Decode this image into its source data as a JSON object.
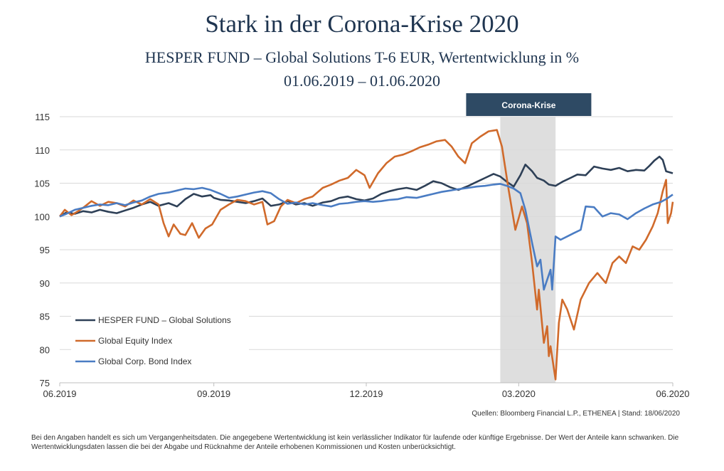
{
  "title": "Stark in der Corona-Krise 2020",
  "subtitle": "HESPER FUND – Global Solutions T-6 EUR, Wertentwicklung in %",
  "period": "01.06.2019 – 01.06.2020",
  "source": "Quellen: Bloomberg Financial L.P., ETHENEA  | Stand: 18/06/2020",
  "disclaimer": "Bei den Angaben handelt es sich um Vergangenheitsdaten. Die angegebene Wertentwicklung ist kein verlässlicher Indikator für laufende oder künftige Ergebnisse. Der Wert der Anteile kann schwanken. Die Wertentwicklungsdaten lassen die bei der Abgabe und Rücknahme der Anteile erhobenen Kommissionen und Kosten unberücksichtigt.",
  "chart_data": {
    "type": "line",
    "title": "Stark in der Corona-Krise 2020",
    "xlabel": "",
    "ylabel": "",
    "xlim": [
      "2019-06-01",
      "2020-06-01"
    ],
    "ylim": [
      75,
      115
    ],
    "yticks": [
      75,
      80,
      85,
      90,
      95,
      100,
      105,
      110,
      115
    ],
    "xticks": [
      {
        "date": "2019-06-01",
        "label": "06.2019"
      },
      {
        "date": "2019-09-01",
        "label": "09.2019"
      },
      {
        "date": "2019-12-01",
        "label": "12.2019"
      },
      {
        "date": "2020-03-01",
        "label": "03.2020"
      },
      {
        "date": "2020-06-01",
        "label": "06.2020"
      }
    ],
    "grid": "horizontal",
    "legend_position": "bottom-left",
    "annotation": {
      "label": "Corona-Krise",
      "start": "2020-02-19",
      "end": "2020-03-23",
      "band_color": "#dedede",
      "label_bg": "#2e4a64"
    },
    "series": [
      {
        "name": "HESPER FUND – Global Solutions",
        "color": "#2e4057",
        "points": [
          [
            "2019-06-01",
            100.0
          ],
          [
            "2019-06-05",
            100.6
          ],
          [
            "2019-06-10",
            100.4
          ],
          [
            "2019-06-15",
            100.8
          ],
          [
            "2019-06-20",
            100.6
          ],
          [
            "2019-06-25",
            101.0
          ],
          [
            "2019-06-30",
            100.7
          ],
          [
            "2019-07-05",
            100.5
          ],
          [
            "2019-07-10",
            100.9
          ],
          [
            "2019-07-15",
            101.3
          ],
          [
            "2019-07-20",
            101.8
          ],
          [
            "2019-07-25",
            102.2
          ],
          [
            "2019-07-30",
            101.6
          ],
          [
            "2019-08-05",
            102.0
          ],
          [
            "2019-08-10",
            101.5
          ],
          [
            "2019-08-15",
            102.6
          ],
          [
            "2019-08-20",
            103.4
          ],
          [
            "2019-08-25",
            103.0
          ],
          [
            "2019-08-30",
            103.2
          ],
          [
            "2019-09-01",
            102.8
          ],
          [
            "2019-09-05",
            102.5
          ],
          [
            "2019-09-10",
            102.4
          ],
          [
            "2019-09-15",
            102.2
          ],
          [
            "2019-09-20",
            102.0
          ],
          [
            "2019-09-25",
            102.3
          ],
          [
            "2019-09-30",
            102.7
          ],
          [
            "2019-10-05",
            101.6
          ],
          [
            "2019-10-10",
            101.8
          ],
          [
            "2019-10-15",
            102.3
          ],
          [
            "2019-10-20",
            101.8
          ],
          [
            "2019-10-25",
            102.0
          ],
          [
            "2019-10-30",
            101.6
          ],
          [
            "2019-11-05",
            102.1
          ],
          [
            "2019-11-10",
            102.3
          ],
          [
            "2019-11-15",
            102.8
          ],
          [
            "2019-11-20",
            103.0
          ],
          [
            "2019-11-25",
            102.6
          ],
          [
            "2019-11-30",
            102.4
          ],
          [
            "2019-12-05",
            102.7
          ],
          [
            "2019-12-10",
            103.4
          ],
          [
            "2019-12-15",
            103.8
          ],
          [
            "2019-12-20",
            104.1
          ],
          [
            "2019-12-25",
            104.3
          ],
          [
            "2019-12-31",
            104.0
          ],
          [
            "2020-01-05",
            104.6
          ],
          [
            "2020-01-10",
            105.3
          ],
          [
            "2020-01-15",
            105.0
          ],
          [
            "2020-01-20",
            104.4
          ],
          [
            "2020-01-25",
            104.0
          ],
          [
            "2020-01-31",
            104.6
          ],
          [
            "2020-02-05",
            105.2
          ],
          [
            "2020-02-10",
            105.8
          ],
          [
            "2020-02-15",
            106.4
          ],
          [
            "2020-02-19",
            106.0
          ],
          [
            "2020-02-23",
            105.2
          ],
          [
            "2020-02-27",
            104.5
          ],
          [
            "2020-03-02",
            106.2
          ],
          [
            "2020-03-05",
            107.8
          ],
          [
            "2020-03-09",
            106.8
          ],
          [
            "2020-03-12",
            105.8
          ],
          [
            "2020-03-16",
            105.4
          ],
          [
            "2020-03-19",
            104.8
          ],
          [
            "2020-03-23",
            104.6
          ],
          [
            "2020-03-27",
            105.2
          ],
          [
            "2020-04-01",
            105.8
          ],
          [
            "2020-04-05",
            106.3
          ],
          [
            "2020-04-10",
            106.2
          ],
          [
            "2020-04-15",
            107.5
          ],
          [
            "2020-04-20",
            107.2
          ],
          [
            "2020-04-25",
            107.0
          ],
          [
            "2020-04-30",
            107.3
          ],
          [
            "2020-05-05",
            106.8
          ],
          [
            "2020-05-10",
            107.0
          ],
          [
            "2020-05-15",
            106.9
          ],
          [
            "2020-05-18",
            107.6
          ],
          [
            "2020-05-21",
            108.4
          ],
          [
            "2020-05-24",
            109.0
          ],
          [
            "2020-05-26",
            108.5
          ],
          [
            "2020-05-28",
            106.8
          ],
          [
            "2020-06-01",
            106.5
          ]
        ]
      },
      {
        "name": "Global Equity Index",
        "color": "#d06a2b",
        "points": [
          [
            "2019-06-01",
            100.0
          ],
          [
            "2019-06-04",
            101.0
          ],
          [
            "2019-06-08",
            100.2
          ],
          [
            "2019-06-12",
            100.8
          ],
          [
            "2019-06-16",
            101.5
          ],
          [
            "2019-06-20",
            102.3
          ],
          [
            "2019-06-25",
            101.6
          ],
          [
            "2019-06-30",
            102.2
          ],
          [
            "2019-07-05",
            102.0
          ],
          [
            "2019-07-10",
            101.5
          ],
          [
            "2019-07-15",
            102.4
          ],
          [
            "2019-07-20",
            101.8
          ],
          [
            "2019-07-25",
            102.6
          ],
          [
            "2019-07-30",
            101.8
          ],
          [
            "2019-08-02",
            99.0
          ],
          [
            "2019-08-05",
            97.0
          ],
          [
            "2019-08-08",
            98.8
          ],
          [
            "2019-08-12",
            97.4
          ],
          [
            "2019-08-15",
            97.2
          ],
          [
            "2019-08-19",
            99.0
          ],
          [
            "2019-08-23",
            96.8
          ],
          [
            "2019-08-27",
            98.2
          ],
          [
            "2019-08-31",
            98.8
          ],
          [
            "2019-09-05",
            101.0
          ],
          [
            "2019-09-10",
            101.8
          ],
          [
            "2019-09-15",
            102.5
          ],
          [
            "2019-09-20",
            102.3
          ],
          [
            "2019-09-25",
            101.8
          ],
          [
            "2019-09-30",
            102.2
          ],
          [
            "2019-10-03",
            98.8
          ],
          [
            "2019-10-07",
            99.3
          ],
          [
            "2019-10-11",
            101.5
          ],
          [
            "2019-10-15",
            102.5
          ],
          [
            "2019-10-20",
            102.0
          ],
          [
            "2019-10-25",
            102.6
          ],
          [
            "2019-10-30",
            103.0
          ],
          [
            "2019-11-05",
            104.3
          ],
          [
            "2019-11-10",
            104.8
          ],
          [
            "2019-11-15",
            105.4
          ],
          [
            "2019-11-20",
            105.8
          ],
          [
            "2019-11-25",
            107.0
          ],
          [
            "2019-11-30",
            106.2
          ],
          [
            "2019-12-03",
            104.3
          ],
          [
            "2019-12-08",
            106.5
          ],
          [
            "2019-12-13",
            108.0
          ],
          [
            "2019-12-18",
            109.0
          ],
          [
            "2019-12-23",
            109.3
          ],
          [
            "2019-12-28",
            109.8
          ],
          [
            "2020-01-02",
            110.4
          ],
          [
            "2020-01-07",
            110.8
          ],
          [
            "2020-01-12",
            111.3
          ],
          [
            "2020-01-17",
            111.5
          ],
          [
            "2020-01-21",
            110.5
          ],
          [
            "2020-01-25",
            109.0
          ],
          [
            "2020-01-29",
            108.0
          ],
          [
            "2020-02-02",
            111.0
          ],
          [
            "2020-02-07",
            112.0
          ],
          [
            "2020-02-12",
            112.8
          ],
          [
            "2020-02-17",
            113.0
          ],
          [
            "2020-02-20",
            110.5
          ],
          [
            "2020-02-24",
            104.0
          ],
          [
            "2020-02-28",
            98.0
          ],
          [
            "2020-03-03",
            101.5
          ],
          [
            "2020-03-06",
            99.0
          ],
          [
            "2020-03-09",
            93.0
          ],
          [
            "2020-03-12",
            86.0
          ],
          [
            "2020-03-13",
            89.0
          ],
          [
            "2020-03-16",
            81.0
          ],
          [
            "2020-03-18",
            83.5
          ],
          [
            "2020-03-19",
            79.0
          ],
          [
            "2020-03-20",
            80.5
          ],
          [
            "2020-03-23",
            75.5
          ],
          [
            "2020-03-25",
            84.0
          ],
          [
            "2020-03-27",
            87.5
          ],
          [
            "2020-03-30",
            86.0
          ],
          [
            "2020-04-03",
            83.0
          ],
          [
            "2020-04-07",
            87.5
          ],
          [
            "2020-04-12",
            90.0
          ],
          [
            "2020-04-17",
            91.5
          ],
          [
            "2020-04-22",
            90.0
          ],
          [
            "2020-04-26",
            93.0
          ],
          [
            "2020-04-30",
            94.0
          ],
          [
            "2020-05-04",
            93.0
          ],
          [
            "2020-05-08",
            95.5
          ],
          [
            "2020-05-12",
            95.0
          ],
          [
            "2020-05-16",
            96.5
          ],
          [
            "2020-05-20",
            98.5
          ],
          [
            "2020-05-23",
            100.5
          ],
          [
            "2020-05-26",
            103.8
          ],
          [
            "2020-05-28",
            105.5
          ],
          [
            "2020-05-29",
            99.0
          ],
          [
            "2020-05-31",
            100.5
          ],
          [
            "2020-06-01",
            102.2
          ]
        ]
      },
      {
        "name": "Global Corp. Bond Index",
        "color": "#4a7cc3",
        "points": [
          [
            "2019-06-01",
            100.0
          ],
          [
            "2019-06-05",
            100.4
          ],
          [
            "2019-06-10",
            101.0
          ],
          [
            "2019-06-15",
            101.3
          ],
          [
            "2019-06-20",
            101.6
          ],
          [
            "2019-06-25",
            101.8
          ],
          [
            "2019-06-30",
            101.7
          ],
          [
            "2019-07-05",
            102.0
          ],
          [
            "2019-07-10",
            101.7
          ],
          [
            "2019-07-15",
            102.1
          ],
          [
            "2019-07-20",
            102.4
          ],
          [
            "2019-07-25",
            103.0
          ],
          [
            "2019-07-30",
            103.4
          ],
          [
            "2019-08-05",
            103.6
          ],
          [
            "2019-08-10",
            103.9
          ],
          [
            "2019-08-15",
            104.2
          ],
          [
            "2019-08-20",
            104.1
          ],
          [
            "2019-08-25",
            104.3
          ],
          [
            "2019-08-30",
            104.0
          ],
          [
            "2019-09-05",
            103.4
          ],
          [
            "2019-09-10",
            102.8
          ],
          [
            "2019-09-15",
            103.0
          ],
          [
            "2019-09-20",
            103.3
          ],
          [
            "2019-09-25",
            103.6
          ],
          [
            "2019-09-30",
            103.8
          ],
          [
            "2019-10-05",
            103.5
          ],
          [
            "2019-10-10",
            102.6
          ],
          [
            "2019-10-15",
            101.9
          ],
          [
            "2019-10-20",
            102.1
          ],
          [
            "2019-10-25",
            101.8
          ],
          [
            "2019-10-30",
            102.0
          ],
          [
            "2019-11-05",
            101.7
          ],
          [
            "2019-11-10",
            101.5
          ],
          [
            "2019-11-15",
            101.9
          ],
          [
            "2019-11-20",
            102.0
          ],
          [
            "2019-11-25",
            102.2
          ],
          [
            "2019-11-30",
            102.3
          ],
          [
            "2019-12-05",
            102.2
          ],
          [
            "2019-12-10",
            102.3
          ],
          [
            "2019-12-15",
            102.5
          ],
          [
            "2019-12-20",
            102.6
          ],
          [
            "2019-12-25",
            102.9
          ],
          [
            "2019-12-31",
            102.8
          ],
          [
            "2020-01-05",
            103.1
          ],
          [
            "2020-01-10",
            103.4
          ],
          [
            "2020-01-15",
            103.7
          ],
          [
            "2020-01-20",
            103.9
          ],
          [
            "2020-01-25",
            104.1
          ],
          [
            "2020-01-31",
            104.3
          ],
          [
            "2020-02-05",
            104.5
          ],
          [
            "2020-02-10",
            104.6
          ],
          [
            "2020-02-15",
            104.8
          ],
          [
            "2020-02-19",
            104.9
          ],
          [
            "2020-02-23",
            104.6
          ],
          [
            "2020-02-27",
            104.2
          ],
          [
            "2020-03-02",
            103.5
          ],
          [
            "2020-03-05",
            101.0
          ],
          [
            "2020-03-09",
            96.0
          ],
          [
            "2020-03-12",
            92.5
          ],
          [
            "2020-03-14",
            93.5
          ],
          [
            "2020-03-16",
            89.0
          ],
          [
            "2020-03-18",
            90.5
          ],
          [
            "2020-03-20",
            92.0
          ],
          [
            "2020-03-21",
            89.0
          ],
          [
            "2020-03-23",
            97.0
          ],
          [
            "2020-03-26",
            96.5
          ],
          [
            "2020-03-30",
            97.0
          ],
          [
            "2020-04-03",
            97.5
          ],
          [
            "2020-04-07",
            98.0
          ],
          [
            "2020-04-10",
            101.5
          ],
          [
            "2020-04-15",
            101.4
          ],
          [
            "2020-04-20",
            100.0
          ],
          [
            "2020-04-25",
            100.5
          ],
          [
            "2020-04-30",
            100.3
          ],
          [
            "2020-05-05",
            99.6
          ],
          [
            "2020-05-10",
            100.5
          ],
          [
            "2020-05-15",
            101.2
          ],
          [
            "2020-05-20",
            101.8
          ],
          [
            "2020-05-25",
            102.2
          ],
          [
            "2020-05-28",
            102.6
          ],
          [
            "2020-06-01",
            103.3
          ]
        ]
      }
    ]
  }
}
